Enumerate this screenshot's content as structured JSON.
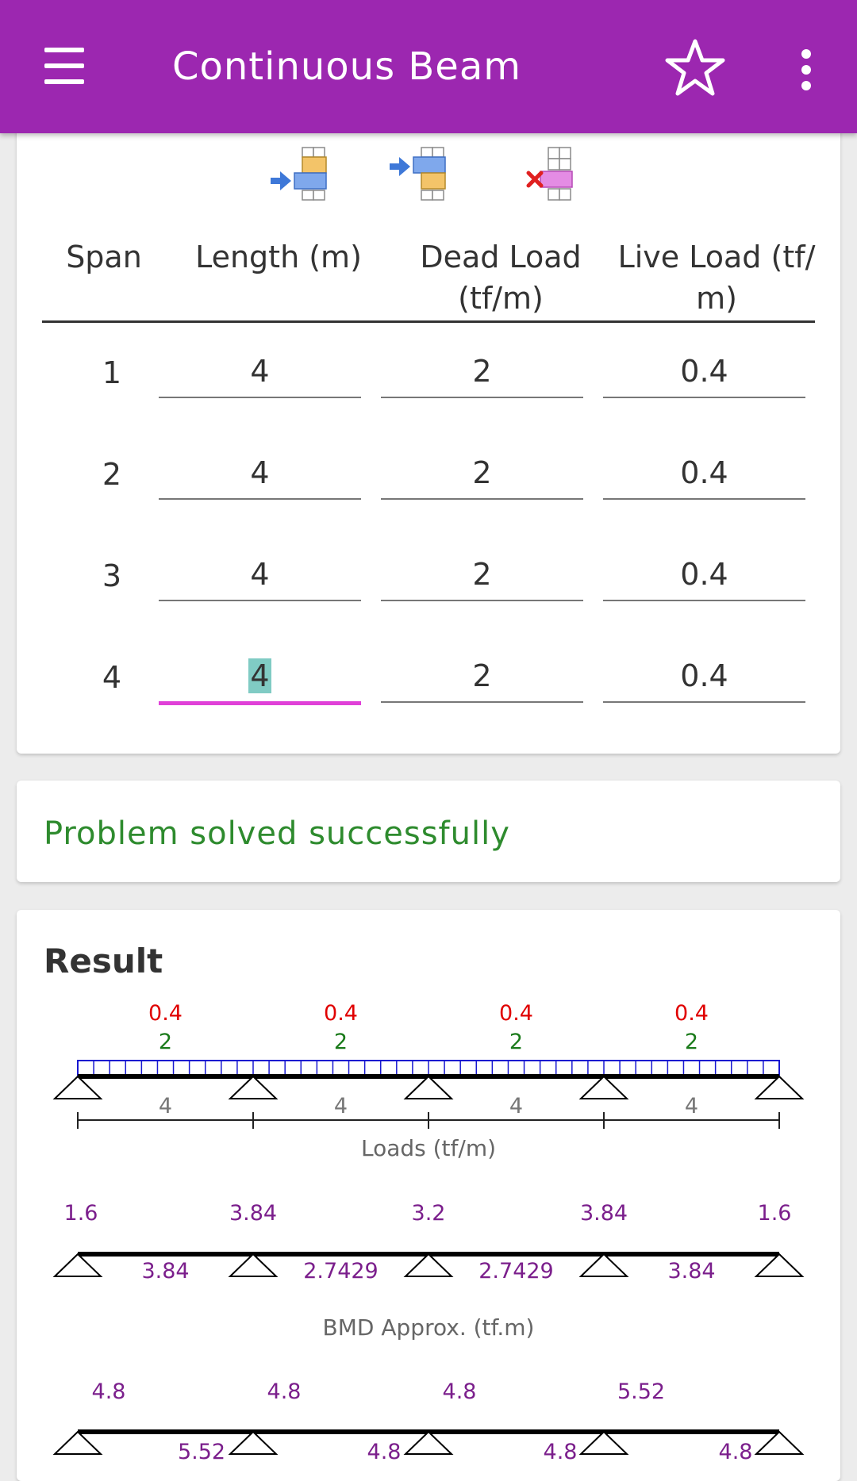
{
  "app": {
    "title": "Continuous Beam",
    "accent": "#9c27b0",
    "icons": {
      "menu": "menu-icon",
      "star": "star-outline-icon",
      "more": "more-vert-icon"
    }
  },
  "toolbar": {
    "icons": [
      "insert-span-before-icon",
      "insert-span-after-icon",
      "delete-span-icon"
    ]
  },
  "table": {
    "headers": {
      "span": "Span",
      "length": "Length (m)",
      "dead_load_1": "Dead Load",
      "dead_load_2": "(tf/m)",
      "live_load_1": "Live Load (tf/",
      "live_load_2": "m)"
    },
    "rows": [
      {
        "span": "1",
        "length": "4",
        "dead": "2",
        "live": "0.4"
      },
      {
        "span": "2",
        "length": "4",
        "dead": "2",
        "live": "0.4"
      },
      {
        "span": "3",
        "length": "4",
        "dead": "2",
        "live": "0.4"
      },
      {
        "span": "4",
        "length": "4",
        "dead": "2",
        "live": "0.4"
      }
    ],
    "active_cell": "row 4 length (selected)"
  },
  "status": {
    "message": "Problem solved successfully",
    "color": "#2e8b2e"
  },
  "result": {
    "title": "Result",
    "loads": {
      "live": [
        "0.4",
        "0.4",
        "0.4",
        "0.4"
      ],
      "dead": [
        "2",
        "2",
        "2",
        "2"
      ],
      "lengths": [
        "4",
        "4",
        "4",
        "4"
      ],
      "caption": "Loads (tf/m)",
      "live_color": "#e00000",
      "dead_color": "#1a7a1a"
    },
    "bmd": {
      "support_values": [
        "1.6",
        "3.84",
        "3.2",
        "3.84",
        "1.6"
      ],
      "span_values": [
        "3.84",
        "2.7429",
        "2.7429",
        "3.84"
      ],
      "caption": "BMD Approx. (tf.m)",
      "color": "#7b1f8c"
    },
    "diagram3": {
      "top_values": [
        "4.8",
        "4.8",
        "4.8",
        "5.52"
      ],
      "bottom_values": [
        "5.52",
        "4.8",
        "4.8",
        "4.8"
      ]
    }
  }
}
